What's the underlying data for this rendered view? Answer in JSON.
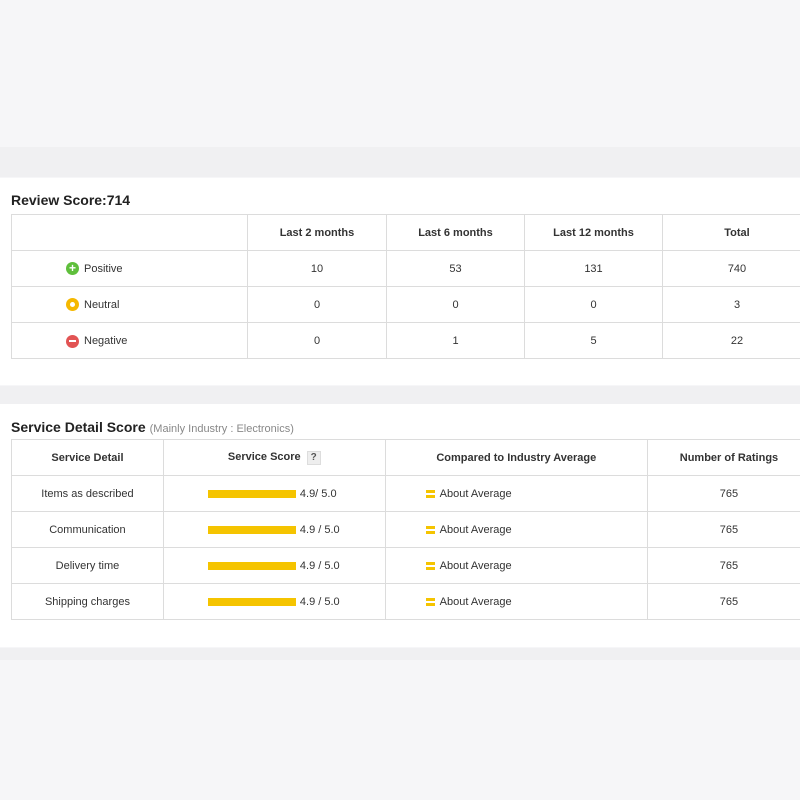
{
  "review": {
    "title": "Review Score:714",
    "headers": [
      "",
      "Last 2 months",
      "Last 6 months",
      "Last 12 months",
      "Total"
    ],
    "rows": [
      {
        "label": "Positive",
        "icon": "plus-circle-icon",
        "color": "#5fbf3c",
        "values": [
          "10",
          "53",
          "131",
          "740"
        ]
      },
      {
        "label": "Neutral",
        "icon": "neutral-circle-icon",
        "color": "#f5b800",
        "values": [
          "0",
          "0",
          "0",
          "3"
        ]
      },
      {
        "label": "Negative",
        "icon": "minus-circle-icon",
        "color": "#e25454",
        "values": [
          "0",
          "1",
          "5",
          "22"
        ]
      }
    ]
  },
  "service": {
    "title": "Service Detail Score",
    "subtitle": "(Mainly Industry : Electronics)",
    "headers": [
      "Service Detail",
      "Service Score",
      "Compared to Industry Average",
      "Number of Ratings"
    ],
    "help_mark": "?",
    "rows": [
      {
        "detail": "Items as described",
        "score": "4.9/ 5.0",
        "compare": "About Average",
        "ratings": "765"
      },
      {
        "detail": "Communication",
        "score": "4.9 / 5.0",
        "compare": "About Average",
        "ratings": "765"
      },
      {
        "detail": "Delivery time",
        "score": "4.9 / 5.0",
        "compare": "About Average",
        "ratings": "765"
      },
      {
        "detail": "Shipping charges",
        "score": "4.9 / 5.0",
        "compare": "About Average",
        "ratings": "765"
      }
    ]
  }
}
